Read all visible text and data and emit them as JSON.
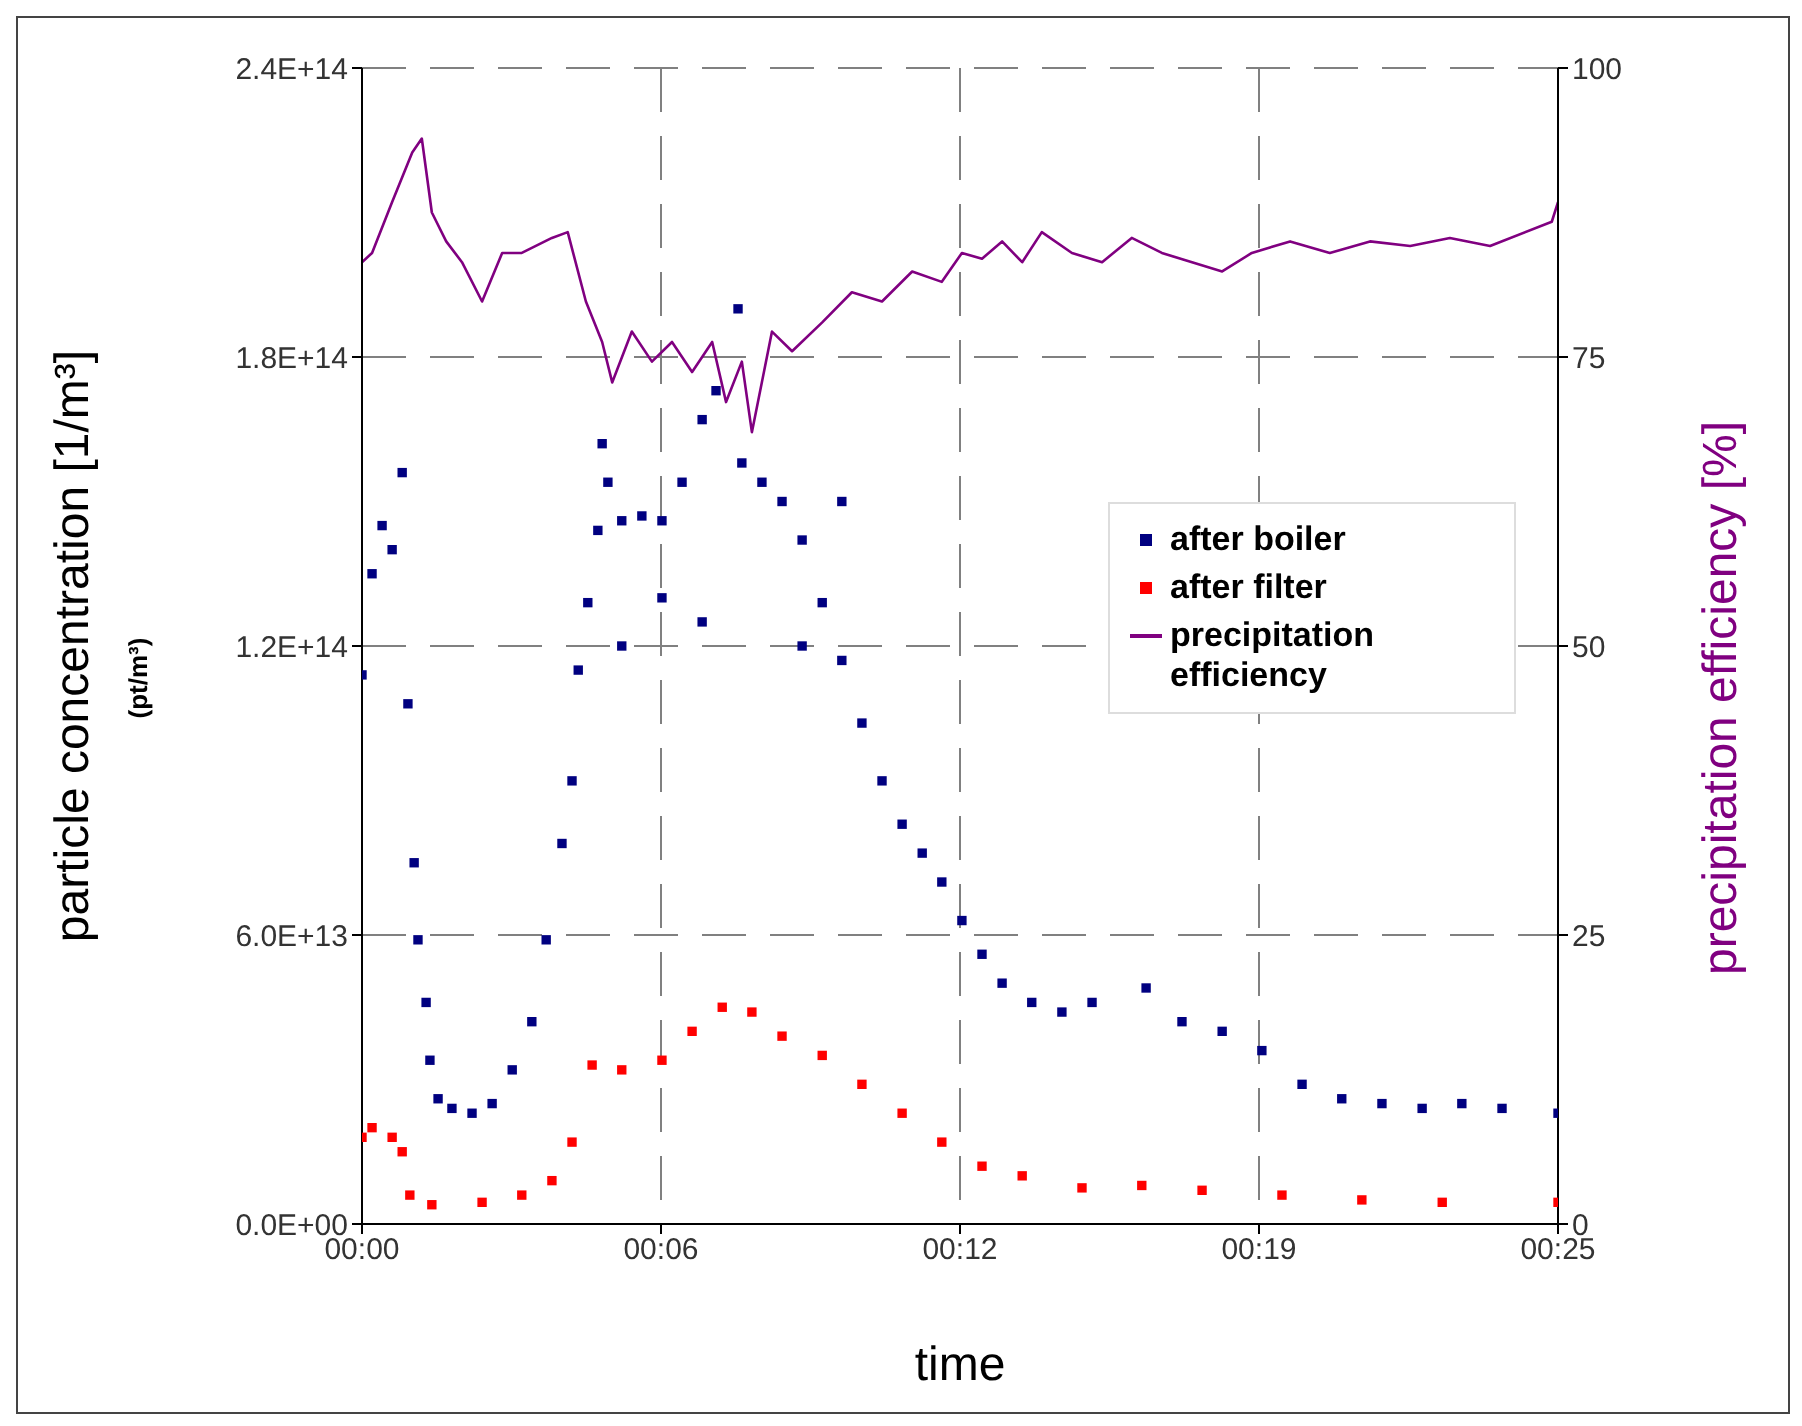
{
  "chart_data": {
    "type": "scatter",
    "xlabel": "time",
    "ylabel": "particle concentration [1/m³]",
    "y2label": "precipitation  efficiency [%]",
    "annotations": [
      "(pt/m³)"
    ],
    "xlim": [
      0,
      25
    ],
    "xticks": [
      {
        "value": 0,
        "label": "00:00"
      },
      {
        "value": 6.25,
        "label": "00:06"
      },
      {
        "value": 12.5,
        "label": "00:12"
      },
      {
        "value": 18.75,
        "label": "00:19"
      },
      {
        "value": 25,
        "label": "00:25"
      }
    ],
    "ylim": [
      0,
      240000000000000.0
    ],
    "yticks": [
      {
        "value": 0,
        "label": "0.0E+00"
      },
      {
        "value": 60000000000000.0,
        "label": "6.0E+13"
      },
      {
        "value": 120000000000000.0,
        "label": "1.2E+14"
      },
      {
        "value": 180000000000000.0,
        "label": "1.8E+14"
      },
      {
        "value": 240000000000000.0,
        "label": "2.4E+14"
      }
    ],
    "y2lim": [
      0,
      100
    ],
    "y2ticks": [
      0,
      25,
      50,
      75,
      100
    ],
    "grid": true,
    "legend": "right",
    "marker": "square",
    "series": [
      {
        "name": "after boiler",
        "color": "#000080",
        "x": [
          0,
          0.21,
          0.42,
          0.63,
          0.84,
          0.96,
          1.09,
          1.17,
          1.34,
          1.42,
          1.59,
          1.88,
          2.3,
          2.72,
          3.14,
          3.55,
          3.85,
          4.18,
          4.39,
          4.52,
          4.72,
          4.93,
          5.02,
          5.14,
          5.43,
          5.43,
          5.85,
          6.27,
          6.27,
          6.69,
          7.11,
          7.11,
          7.4,
          7.86,
          7.94,
          8.36,
          8.78,
          9.2,
          9.2,
          9.62,
          10.03,
          10.03,
          10.45,
          10.87,
          11.29,
          11.71,
          12.12,
          12.54,
          12.96,
          13.38,
          14,
          14.63,
          15.26,
          16.39,
          17.14,
          17.98,
          18.81,
          19.65,
          20.48,
          21.32,
          22.16,
          22.99,
          23.83,
          25
        ],
        "values": [
          114000000000000.0,
          135000000000000.0,
          145000000000000.0,
          140000000000000.0,
          156000000000000.0,
          108000000000000.0,
          75000000000000.0,
          59000000000000.0,
          46000000000000.0,
          34000000000000.0,
          26000000000000.0,
          24000000000000.0,
          23000000000000.0,
          25000000000000.0,
          32000000000000.0,
          42000000000000.0,
          59000000000000.0,
          79000000000000.0,
          92000000000000.0,
          115000000000000.0,
          129000000000000.0,
          144000000000000.0,
          162000000000000.0,
          154000000000000.0,
          146000000000000.0,
          120000000000000.0,
          147000000000000.0,
          146000000000000.0,
          130000000000000.0,
          154000000000000.0,
          167000000000000.0,
          125000000000000.0,
          173000000000000.0,
          190000000000000.0,
          158000000000000.0,
          154000000000000.0,
          150000000000000.0,
          142000000000000.0,
          120000000000000.0,
          129000000000000.0,
          117000000000000.0,
          150000000000000.0,
          104000000000000.0,
          92000000000000.0,
          83000000000000.0,
          77000000000000.0,
          71000000000000.0,
          63000000000000.0,
          56000000000000.0,
          50000000000000.0,
          46000000000000.0,
          44000000000000.0,
          46000000000000.0,
          49000000000000.0,
          42000000000000.0,
          40000000000000.0,
          36000000000000.0,
          29000000000000.0,
          26000000000000.0,
          25000000000000.0,
          24000000000000.0,
          25000000000000.0,
          24000000000000.0,
          23000000000000.0
        ]
      },
      {
        "name": "after filter",
        "color": "#ff0000",
        "x": [
          0,
          0.21,
          0.63,
          0.84,
          1.0,
          1.46,
          2.51,
          3.34,
          3.97,
          4.39,
          4.81,
          5.43,
          6.27,
          6.9,
          7.53,
          8.15,
          8.78,
          9.62,
          10.45,
          11.29,
          12.12,
          12.96,
          13.8,
          15.05,
          16.3,
          17.56,
          19.23,
          20.9,
          22.58,
          25
        ],
        "values": [
          18000000000000.0,
          20000000000000.0,
          18000000000000.0,
          15000000000000.0,
          6000000000000.0,
          4000000000000.0,
          4500000000000.0,
          6000000000000.0,
          9000000000000.0,
          17000000000000.0,
          33000000000000.0,
          32000000000000.0,
          34000000000000.0,
          40000000000000.0,
          45000000000000.0,
          44000000000000.0,
          39000000000000.0,
          35000000000000.0,
          29000000000000.0,
          23000000000000.0,
          17000000000000.0,
          12000000000000.0,
          10000000000000.0,
          7500000000000.0,
          8000000000000.0,
          7000000000000.0,
          6000000000000.0,
          5000000000000.0,
          4500000000000.0,
          4500000000000.0
        ]
      },
      {
        "name": "precipitation efficiency",
        "type": "line",
        "axis": "y2",
        "marker": "none",
        "color": "#800080",
        "x": [
          0,
          0.21,
          0.63,
          1.05,
          1.25,
          1.46,
          1.76,
          2.09,
          2.51,
          2.93,
          3.34,
          3.97,
          4.3,
          4.68,
          5.02,
          5.23,
          5.64,
          6.06,
          6.48,
          6.9,
          7.32,
          7.61,
          7.94,
          8.15,
          8.57,
          8.99,
          9.62,
          10.24,
          10.87,
          11.5,
          12.12,
          12.54,
          12.96,
          13.38,
          13.8,
          14.21,
          14.84,
          15.47,
          16.09,
          16.72,
          17.35,
          17.98,
          18.6,
          19.4,
          20.23,
          21.07,
          21.91,
          22.74,
          23.58,
          24.87,
          25
        ],
        "values": [
          83.2,
          84,
          88.4,
          92.7,
          93.9,
          87.5,
          85,
          83.2,
          79.8,
          84,
          84,
          85.3,
          85.8,
          79.8,
          76.3,
          72.8,
          77.2,
          74.6,
          76.3,
          73.7,
          76.3,
          71.1,
          74.6,
          68.5,
          77.2,
          75.5,
          78,
          80.6,
          79.8,
          82.4,
          81.5,
          84,
          83.5,
          85,
          83.2,
          85.8,
          84,
          83.2,
          85.3,
          84,
          83.2,
          82.4,
          84,
          85,
          84,
          85,
          84.6,
          85.3,
          84.6,
          86.7,
          88.4
        ]
      }
    ]
  }
}
